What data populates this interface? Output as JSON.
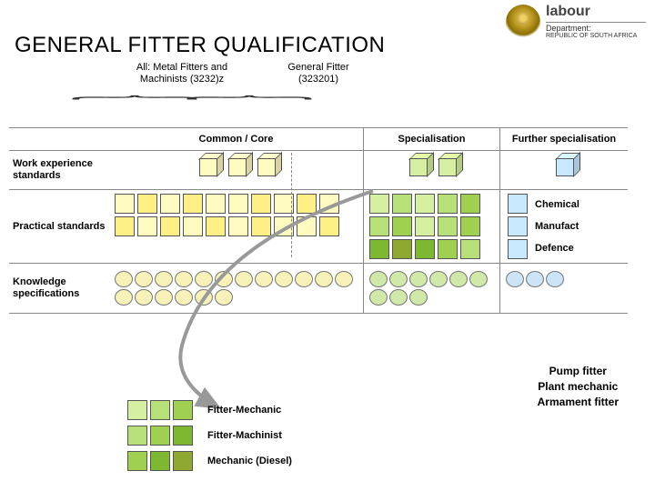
{
  "branding": {
    "name": "labour",
    "dept": "Department:",
    "sub": "REPUBLIC OF SOUTH AFRICA"
  },
  "title": "GENERAL FITTER QUALIFICATION",
  "subheads": {
    "left": "All: Metal Fitters and\nMachinists (3232)z",
    "right": "General Fitter\n(323201)"
  },
  "columns": {
    "c1": "",
    "c2": "Common / Core",
    "c3": "Specialisation",
    "c4": "Further specialisation"
  },
  "rows": {
    "r1": "Work experience standards",
    "r2": "Practical standards",
    "r3": "Knowledge specifications"
  },
  "sector_labels": [
    "Chemical",
    "Manufact",
    "Defence"
  ],
  "colors": {
    "yellow1": "#fffac0",
    "yellow2": "#fff085",
    "yellow3": "#f5e96a",
    "green1": "#d4f0a0",
    "green2": "#b8e078",
    "green3": "#9fd050",
    "green4": "#7eb830",
    "olive": "#8fa830",
    "blue": "#c8e8ff",
    "hex_y": "#f8f2b8",
    "hex_g": "#d0e8a8",
    "hex_b": "#cce4f8",
    "arrow": "#999999"
  },
  "legend": {
    "l1": "Fitter-Mechanic",
    "l2": "Fitter-Machinist",
    "l3": "Mechanic (Diesel)"
  },
  "pump_list": [
    "Pump fitter",
    "Plant mechanic",
    "Armament fitter"
  ],
  "work_cubes_common": 3,
  "work_cubes_spec": 2,
  "work_cubes_further": 1,
  "practical_common_colors": [
    "#fffac0",
    "#fff085",
    "#fffac0",
    "#fff085",
    "#fffac0",
    "#fffac0",
    "#fff085",
    "#fffac0",
    "#fff085",
    "#fffac0",
    "#fff085",
    "#fffac0",
    "#fff085",
    "#fffac0",
    "#fff085",
    "#fffac0",
    "#fff085",
    "#fffac0",
    "#fffac0",
    "#fff085"
  ],
  "practical_spec_colors": [
    "#d4f0a0",
    "#b8e078",
    "#d4f0a0",
    "#b8e078",
    "#9fd050",
    "#b8e078",
    "#9fd050",
    "#d4f0a0",
    "#b8e078",
    "#9fd050",
    "#7eb830",
    "#8fa830",
    "#7eb830",
    "#9fd050",
    "#b8e078"
  ],
  "practical_further_colors": [
    "#c8e8ff",
    "#c8e8ff",
    "#c8e8ff"
  ],
  "knowledge_common_count": 18,
  "knowledge_spec_count": 9,
  "knowledge_further_count": 3,
  "legend_colors": {
    "l1": [
      "#d4f0a0",
      "#b8e078",
      "#9fd050"
    ],
    "l2": [
      "#b8e078",
      "#9fd050",
      "#7eb830"
    ],
    "l3": [
      "#9fd050",
      "#7eb830",
      "#8fa830"
    ]
  }
}
